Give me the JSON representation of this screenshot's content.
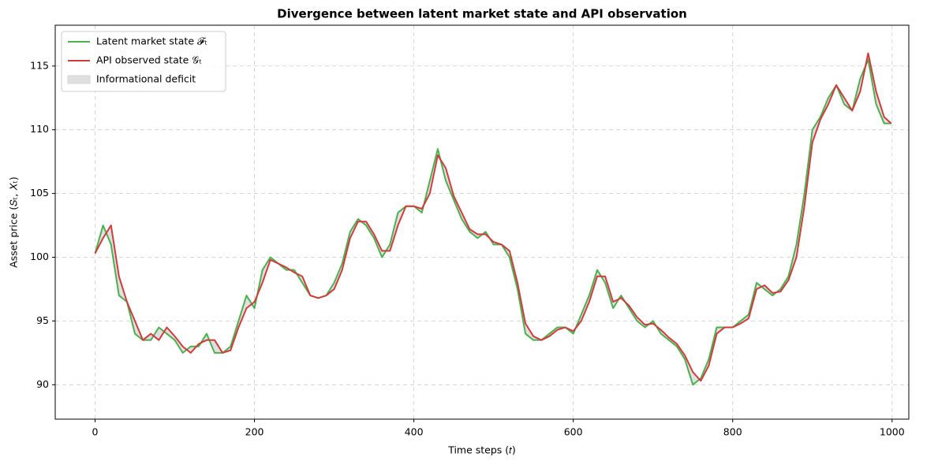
{
  "chart_data": {
    "type": "line",
    "title": "Divergence between latent market state and API observation",
    "x_label": "Time steps (𝑡)",
    "y_label": "Asset price (𝑆ₜ, 𝑋ₜ)",
    "x": [
      0,
      10,
      20,
      30,
      40,
      50,
      60,
      70,
      80,
      90,
      100,
      110,
      120,
      130,
      140,
      150,
      160,
      170,
      180,
      190,
      200,
      210,
      220,
      230,
      240,
      250,
      260,
      270,
      280,
      290,
      300,
      310,
      320,
      330,
      340,
      350,
      360,
      370,
      380,
      390,
      400,
      410,
      420,
      430,
      440,
      450,
      460,
      470,
      480,
      490,
      500,
      510,
      520,
      530,
      540,
      550,
      560,
      570,
      580,
      590,
      600,
      610,
      620,
      630,
      640,
      650,
      660,
      670,
      680,
      690,
      700,
      710,
      720,
      730,
      740,
      750,
      760,
      770,
      780,
      790,
      800,
      810,
      820,
      830,
      840,
      850,
      860,
      870,
      880,
      890,
      900,
      910,
      920,
      930,
      940,
      950,
      960,
      970,
      980,
      990,
      999
    ],
    "series": [
      {
        "name": "Latent market state 𝓕ₜ",
        "color": "#4caf50",
        "values": [
          100.3,
          102.5,
          101,
          97,
          96.5,
          94,
          93.5,
          93.5,
          94.5,
          94,
          93.5,
          92.5,
          93,
          93,
          94,
          92.5,
          92.5,
          93,
          95,
          97,
          96,
          99,
          100,
          99.5,
          99,
          99,
          98,
          97,
          96.8,
          97,
          98,
          99.5,
          102,
          103,
          102.5,
          101.5,
          100,
          101,
          103.5,
          104,
          104,
          103.5,
          106,
          108.5,
          106,
          104.5,
          103,
          102,
          101.5,
          102,
          101,
          101,
          100,
          97.5,
          94,
          93.5,
          93.5,
          94,
          94.5,
          94.5,
          94,
          95.5,
          97,
          99,
          98,
          96,
          97,
          96,
          95,
          94.5,
          95,
          94,
          93.5,
          93,
          92,
          90,
          90.5,
          92,
          94.5,
          94.5,
          94.5,
          95,
          95.5,
          98,
          97.5,
          97,
          97.5,
          98.5,
          101,
          105,
          110,
          111,
          112.5,
          113.5,
          112,
          111.5,
          114,
          115.5,
          112,
          110.5,
          110.5
        ]
      },
      {
        "name": "API observed state 𝒢ₜ",
        "color": "#d13b3b",
        "values": [
          100.3,
          101.5,
          102.5,
          98.5,
          96.5,
          95,
          93.5,
          94,
          93.5,
          94.5,
          93.8,
          93,
          92.5,
          93.2,
          93.5,
          93.5,
          92.5,
          92.7,
          94.5,
          96,
          96.5,
          98,
          99.8,
          99.5,
          99.2,
          98.8,
          98.5,
          97,
          96.8,
          97,
          97.5,
          99,
          101.5,
          102.8,
          102.8,
          101.8,
          100.5,
          100.5,
          102.5,
          104,
          104,
          103.8,
          105,
          108,
          107,
          104.8,
          103.5,
          102.2,
          101.8,
          101.8,
          101.2,
          101,
          100.5,
          98,
          94.8,
          93.8,
          93.5,
          93.8,
          94.3,
          94.5,
          94.2,
          95,
          96.5,
          98.5,
          98.5,
          96.5,
          96.8,
          96.2,
          95.3,
          94.7,
          94.8,
          94.3,
          93.7,
          93.2,
          92.3,
          91,
          90.3,
          91.5,
          94,
          94.5,
          94.5,
          94.8,
          95.2,
          97.5,
          97.8,
          97.2,
          97.3,
          98.2,
          100,
          104,
          109,
          110.8,
          112,
          113.5,
          112.5,
          111.5,
          113,
          116,
          113,
          111,
          110.5
        ]
      }
    ],
    "fill": {
      "name": "Informational deficit",
      "color": "#cccccc"
    },
    "xlim": [
      -50,
      1021
    ],
    "xticks": [
      0,
      200,
      400,
      600,
      800,
      1000
    ],
    "ylim": [
      87.3,
      118.2
    ],
    "yticks": [
      90,
      95,
      100,
      105,
      110,
      115
    ],
    "grid": true,
    "legend": "upper left"
  }
}
